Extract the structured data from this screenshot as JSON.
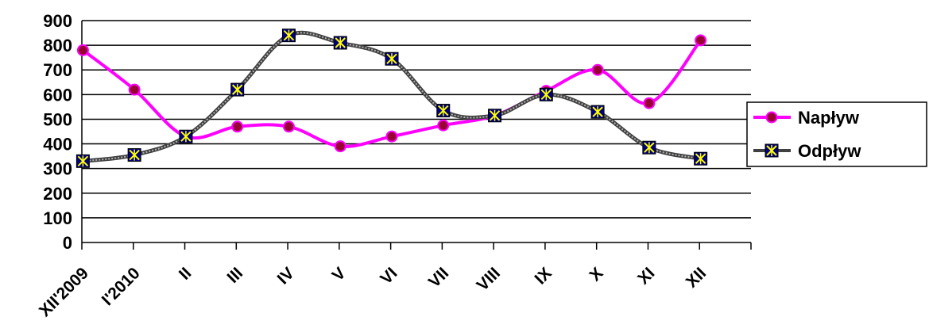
{
  "chart_data": {
    "type": "line",
    "title": "",
    "xlabel": "",
    "ylabel": "",
    "ylim": [
      0,
      900
    ],
    "yticks": [
      0,
      100,
      200,
      300,
      400,
      500,
      600,
      700,
      800,
      900
    ],
    "grid": true,
    "legend_position": "right",
    "categories": [
      "XII'2009",
      "I'2010",
      "II",
      "III",
      "IV",
      "V",
      "VI",
      "VII",
      "VIII",
      "IX",
      "X",
      "XI",
      "XII"
    ],
    "series": [
      {
        "name": "Napływ",
        "color": "#ff00ff",
        "marker": "circle",
        "marker_color": "#990033",
        "values": [
          780,
          620,
          430,
          470,
          470,
          390,
          430,
          475,
          515,
          615,
          700,
          565,
          820
        ]
      },
      {
        "name": "Odpływ",
        "color": "#808080",
        "marker": "square-x",
        "marker_color": "#000080",
        "marker_cross": "#ffff00",
        "values": [
          330,
          355,
          430,
          620,
          840,
          810,
          745,
          535,
          515,
          600,
          530,
          385,
          340
        ]
      }
    ]
  }
}
